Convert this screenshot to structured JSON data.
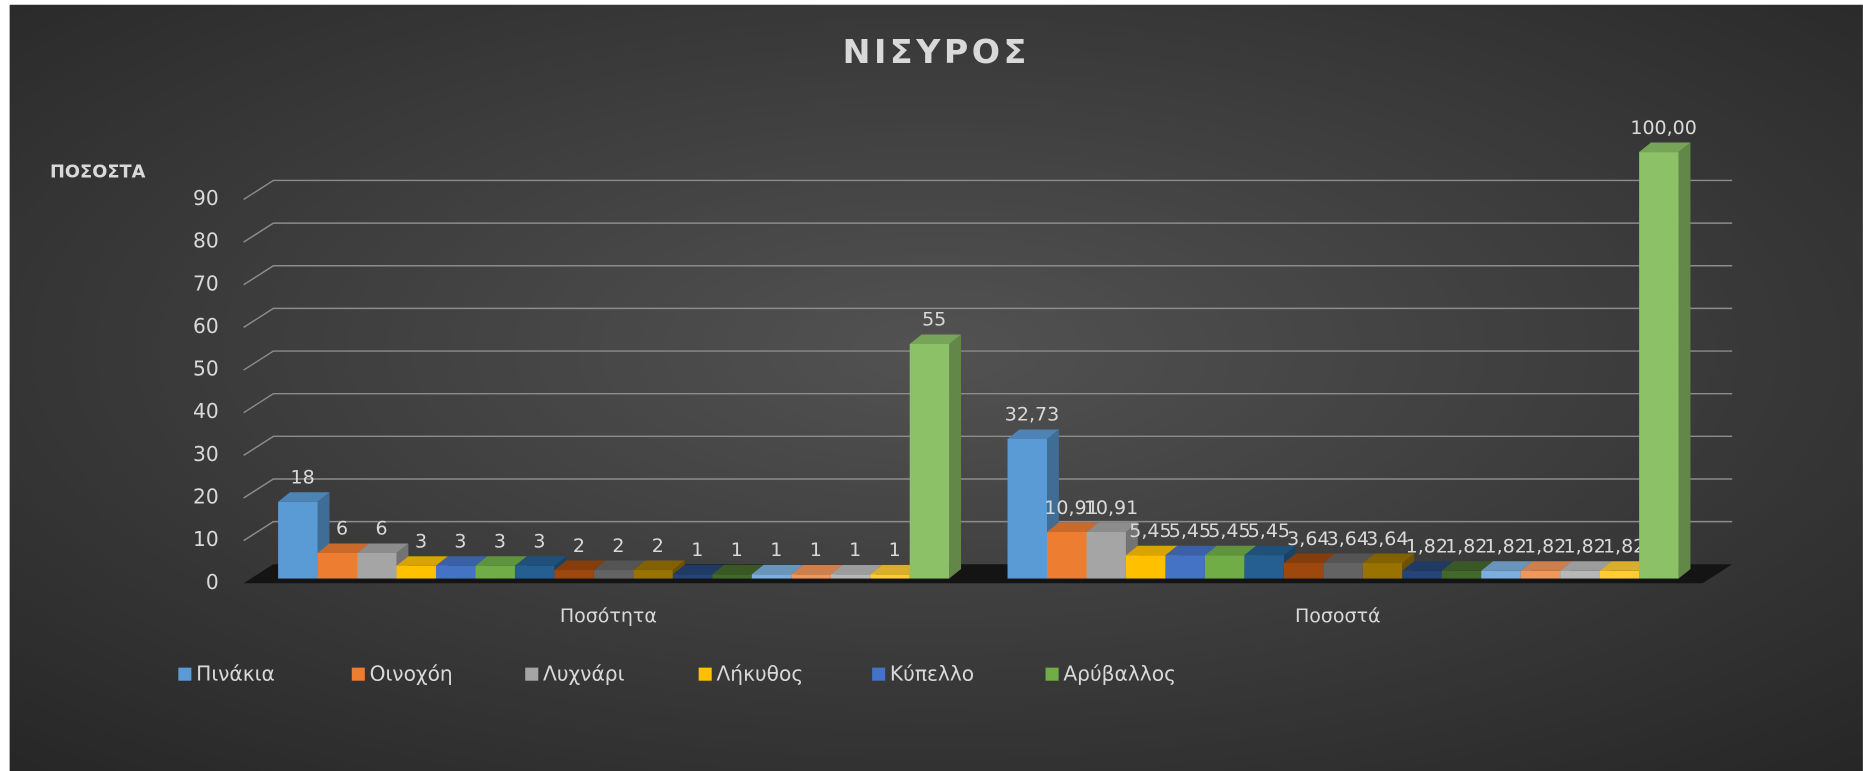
{
  "chart_data": {
    "type": "bar3d",
    "title": "ΝΙΣΥΡΟΣ",
    "y_label": "ΠΟΣΟΣΤΑ",
    "categories": [
      "Ποσότητα",
      "Ποσοστά"
    ],
    "ylim": [
      0,
      100
    ],
    "yticks": [
      0,
      10,
      20,
      30,
      40,
      50,
      60,
      70,
      80,
      90
    ],
    "grid": true,
    "legend": "bottom",
    "series": [
      {
        "name": "Πινάκια",
        "color": "#5b9bd5",
        "values": [
          18,
          32.73
        ],
        "value_labels": [
          "18",
          "32,73"
        ]
      },
      {
        "name": "Οινοχόη",
        "color": "#ed7d31",
        "values": [
          6,
          10.91
        ],
        "value_labels": [
          "6",
          "10,91"
        ]
      },
      {
        "name": "Λυχνάρι",
        "color": "#a5a5a5",
        "values": [
          6,
          10.91
        ],
        "value_labels": [
          "6",
          "10,91"
        ]
      },
      {
        "name": "Λήκυθος",
        "color": "#ffc000",
        "values": [
          3,
          5.45
        ],
        "value_labels": [
          "3",
          "5,45"
        ]
      },
      {
        "name": "Κύπελλο",
        "color": "#4472c4",
        "values": [
          3,
          5.45
        ],
        "value_labels": [
          "3",
          "5,45"
        ]
      },
      {
        "name": "Αρύβαλλος",
        "color": "#70ad47",
        "values": [
          3,
          5.45
        ],
        "value_labels": [
          "3",
          "5,45"
        ]
      },
      {
        "name": null,
        "color": "#255e91",
        "values": [
          3,
          5.45
        ],
        "value_labels": [
          "3",
          "5,45"
        ]
      },
      {
        "name": null,
        "color": "#9e480e",
        "values": [
          2,
          3.64
        ],
        "value_labels": [
          "2",
          "3,64"
        ]
      },
      {
        "name": null,
        "color": "#636363",
        "values": [
          2,
          3.64
        ],
        "value_labels": [
          "2",
          "3,64"
        ]
      },
      {
        "name": null,
        "color": "#997300",
        "values": [
          2,
          3.64
        ],
        "value_labels": [
          "2",
          "3,64"
        ]
      },
      {
        "name": null,
        "color": "#264478",
        "values": [
          1,
          1.82
        ],
        "value_labels": [
          "1",
          "1,82"
        ]
      },
      {
        "name": null,
        "color": "#43682b",
        "values": [
          1,
          1.82
        ],
        "value_labels": [
          "1",
          "1,82"
        ]
      },
      {
        "name": null,
        "color": "#7cafdd",
        "values": [
          1,
          1.82
        ],
        "value_labels": [
          "1",
          "1,82"
        ]
      },
      {
        "name": null,
        "color": "#f1975a",
        "values": [
          1,
          1.82
        ],
        "value_labels": [
          "1",
          "1,82"
        ]
      },
      {
        "name": null,
        "color": "#b7b7b7",
        "values": [
          1,
          1.82
        ],
        "value_labels": [
          "1",
          "1,82"
        ]
      },
      {
        "name": null,
        "color": "#ffcd33",
        "values": [
          1,
          1.82
        ],
        "value_labels": [
          "1",
          "1,82"
        ]
      },
      {
        "name": null,
        "color": "#8cc168",
        "values": [
          55,
          100.0
        ],
        "value_labels": [
          "55",
          "100,00"
        ]
      }
    ]
  }
}
